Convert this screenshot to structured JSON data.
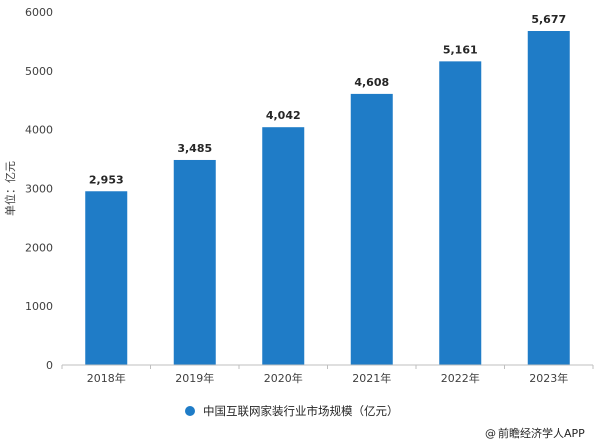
{
  "chart_data": {
    "type": "bar",
    "categories": [
      "2018年",
      "2019年",
      "2020年",
      "2021年",
      "2022年",
      "2023年"
    ],
    "series": [
      {
        "name": "中国互联网家装行业市场规模（亿元）",
        "values": [
          2953,
          3485,
          4042,
          4608,
          5161,
          5677
        ],
        "color": "#1f7cc7"
      }
    ],
    "data_labels": [
      "2,953",
      "3,485",
      "4,042",
      "4,608",
      "5,161",
      "5,677"
    ],
    "yticks": [
      0,
      1000,
      2000,
      3000,
      4000,
      5000,
      6000
    ],
    "ylim": [
      0,
      6000
    ],
    "ylabel": "单位：亿元",
    "xlabel": "",
    "title": "",
    "grid": false,
    "legend_position": "bottom"
  },
  "footer": {
    "credit": "前瞻经济学人APP"
  },
  "colors": {
    "bar": "#1f7cc7",
    "axis": "#bfbfbf"
  }
}
